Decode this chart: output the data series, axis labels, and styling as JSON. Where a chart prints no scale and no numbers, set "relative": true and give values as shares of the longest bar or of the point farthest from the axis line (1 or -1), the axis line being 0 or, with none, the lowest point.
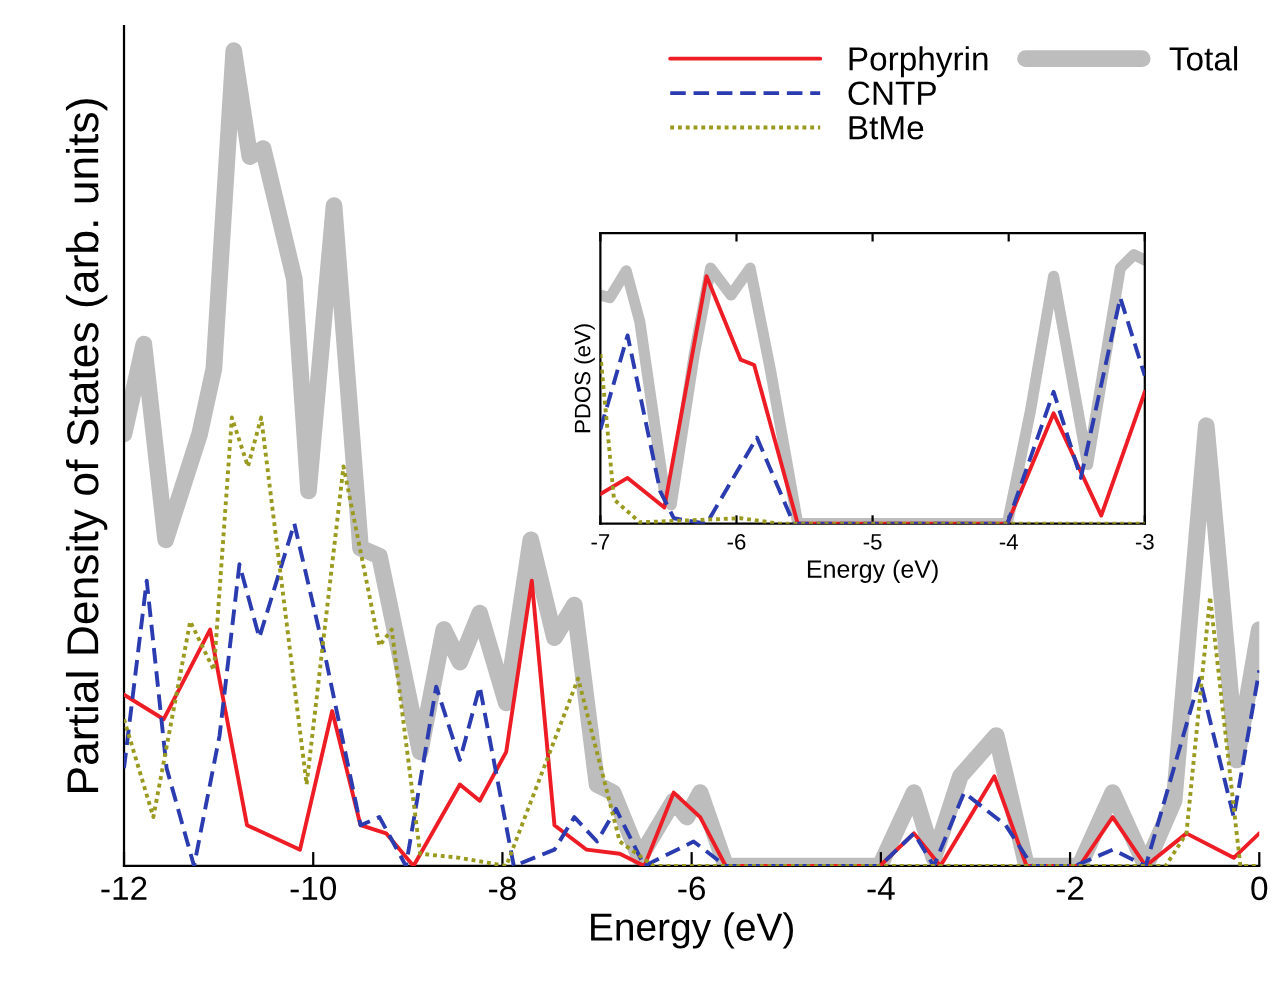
{
  "chart_data": [
    {
      "type": "line",
      "relative": true,
      "xlabel": "Energy (eV)",
      "ylabel": "Partial Density of States (arb. units)",
      "xlim": [
        -12,
        0
      ],
      "xticks": [
        -12,
        -10,
        -8,
        -6,
        -4,
        -2,
        0
      ],
      "legend": "top right",
      "series": [
        {
          "name": "Total",
          "color": "#bdbdbd",
          "line_style": "solid",
          "x": [
            -12,
            -11.79,
            -11.56,
            -11.2,
            -11.05,
            -10.84,
            -10.67,
            -10.53,
            -10.2,
            -10.05,
            -9.78,
            -9.5,
            -9.3,
            -8.87,
            -8.62,
            -8.45,
            -8.24,
            -7.96,
            -7.7,
            -7.45,
            -7.24,
            -7.0,
            -6.83,
            -6.55,
            -6.19,
            -6.05,
            -5.91,
            -5.64,
            -4.01,
            -3.65,
            -3.44,
            -3.16,
            -2.78,
            -2.46,
            -1.9,
            -1.55,
            -1.2,
            -0.9,
            -0.56,
            -0.24,
            0
          ],
          "values": [
            0.53,
            0.64,
            0.4,
            0.53,
            0.61,
            1.0,
            0.87,
            0.88,
            0.72,
            0.46,
            0.81,
            0.39,
            0.38,
            0.14,
            0.29,
            0.25,
            0.31,
            0.2,
            0.4,
            0.28,
            0.32,
            0.1,
            0.09,
            0.01,
            0.08,
            0.06,
            0.09,
            0,
            0,
            0.09,
            0.01,
            0.11,
            0.16,
            0,
            0,
            0.09,
            0,
            0.08,
            0.54,
            0.13,
            0.29
          ]
        },
        {
          "name": "Porphyrin",
          "color": "#ee1c24",
          "line_style": "solid",
          "x": [
            -12,
            -11.58,
            -11.09,
            -10.7,
            -10.14,
            -9.8,
            -9.5,
            -9.23,
            -8.94,
            -8.45,
            -8.24,
            -7.96,
            -7.69,
            -7.45,
            -7.11,
            -6.76,
            -6.5,
            -6.19,
            -5.91,
            -5.64,
            -4.01,
            -3.65,
            -3.37,
            -2.8,
            -2.46,
            -1.9,
            -1.55,
            -1.2,
            -0.77,
            -0.27,
            0
          ],
          "values": [
            0.21,
            0.18,
            0.29,
            0.05,
            0.02,
            0.19,
            0.05,
            0.04,
            0.0,
            0.1,
            0.08,
            0.14,
            0.35,
            0.05,
            0.02,
            0.015,
            0,
            0.09,
            0.06,
            0,
            0,
            0.04,
            0,
            0.11,
            0,
            0,
            0.06,
            0,
            0.04,
            0.01,
            0.04
          ]
        },
        {
          "name": "CNTP",
          "color": "#2b3bb0",
          "line_style": "dashed",
          "x": [
            -12,
            -11.76,
            -11.55,
            -11.26,
            -10.99,
            -10.78,
            -10.57,
            -10.2,
            -9.86,
            -9.5,
            -9.3,
            -9.02,
            -8.7,
            -8.45,
            -8.24,
            -7.88,
            -7.45,
            -7.24,
            -7.0,
            -6.8,
            -6.5,
            -5.98,
            -5.64,
            -4.01,
            -3.65,
            -3.44,
            -3.12,
            -2.68,
            -2.4,
            -1.95,
            -1.55,
            -1.2,
            -0.63,
            -0.27,
            0
          ],
          "values": [
            0.12,
            0.35,
            0.12,
            0,
            0.16,
            0.37,
            0.28,
            0.42,
            0.25,
            0.05,
            0.06,
            0.0,
            0.22,
            0.13,
            0.22,
            0.0,
            0.02,
            0.06,
            0.03,
            0.07,
            0,
            0.03,
            0,
            0,
            0.04,
            0,
            0.09,
            0.05,
            0,
            0,
            0.02,
            0,
            0.23,
            0.06,
            0.24
          ]
        },
        {
          "name": "BtMe",
          "color": "#9a9a20",
          "line_style": "dotted",
          "x": [
            -12,
            -11.69,
            -11.3,
            -11.05,
            -10.86,
            -10.69,
            -10.55,
            -10.07,
            -9.68,
            -9.3,
            -9.17,
            -8.87,
            -8.45,
            -7.96,
            -7.2,
            -6.76,
            -6.4,
            -0.99,
            -0.77,
            -0.52,
            -0.2,
            0
          ],
          "values": [
            0.18,
            0.06,
            0.3,
            0.24,
            0.55,
            0.49,
            0.55,
            0.1,
            0.49,
            0.27,
            0.29,
            0.015,
            0.01,
            0,
            0.23,
            0.03,
            0,
            0,
            0.04,
            0.33,
            0,
            0
          ]
        }
      ]
    },
    {
      "type": "line",
      "relative": true,
      "xlabel": "Energy (eV)",
      "ylabel": "PDOS (eV)",
      "xlim": [
        -7,
        -3
      ],
      "xticks": [
        -7,
        -6,
        -5,
        -4,
        -3
      ],
      "series": [
        {
          "color": "#bdbdbd",
          "line_style": "solid",
          "x": [
            -7,
            -6.93,
            -6.81,
            -6.71,
            -6.53,
            -6.48,
            -6.31,
            -6.19,
            -6.04,
            -5.9,
            -5.75,
            -5.55,
            -4.01,
            -3.84,
            -3.67,
            -3.42,
            -3.18,
            -3.08,
            -3.0
          ],
          "values": [
            0.85,
            0.84,
            0.94,
            0.75,
            0.12,
            0.07,
            0.63,
            0.95,
            0.85,
            0.95,
            0.57,
            0,
            0,
            0.42,
            0.92,
            0.22,
            0.95,
            1.0,
            0.98
          ]
        },
        {
          "color": "#ee1c24",
          "line_style": "solid",
          "x": [
            -7,
            -6.8,
            -6.53,
            -6.22,
            -5.97,
            -5.87,
            -5.55,
            -4.01,
            -3.67,
            -3.32,
            -3.0
          ],
          "values": [
            0.11,
            0.17,
            0.06,
            0.92,
            0.61,
            0.59,
            0,
            0,
            0.41,
            0.03,
            0.49
          ]
        },
        {
          "color": "#2b3bb0",
          "line_style": "dashed",
          "x": [
            -7,
            -6.8,
            -6.56,
            -6.46,
            -6.22,
            -5.85,
            -5.58,
            -4.01,
            -3.67,
            -3.47,
            -3.18,
            -3.0
          ],
          "values": [
            0.35,
            0.7,
            0.12,
            0.02,
            0,
            0.32,
            0,
            0,
            0.49,
            0.17,
            0.84,
            0.55
          ]
        },
        {
          "color": "#9a9a20",
          "line_style": "dotted",
          "x": [
            -7,
            -6.9,
            -6.71,
            -5.97,
            -5.68,
            -3.0
          ],
          "values": [
            0.63,
            0.09,
            0.005,
            0.02,
            0,
            0
          ]
        }
      ]
    }
  ]
}
